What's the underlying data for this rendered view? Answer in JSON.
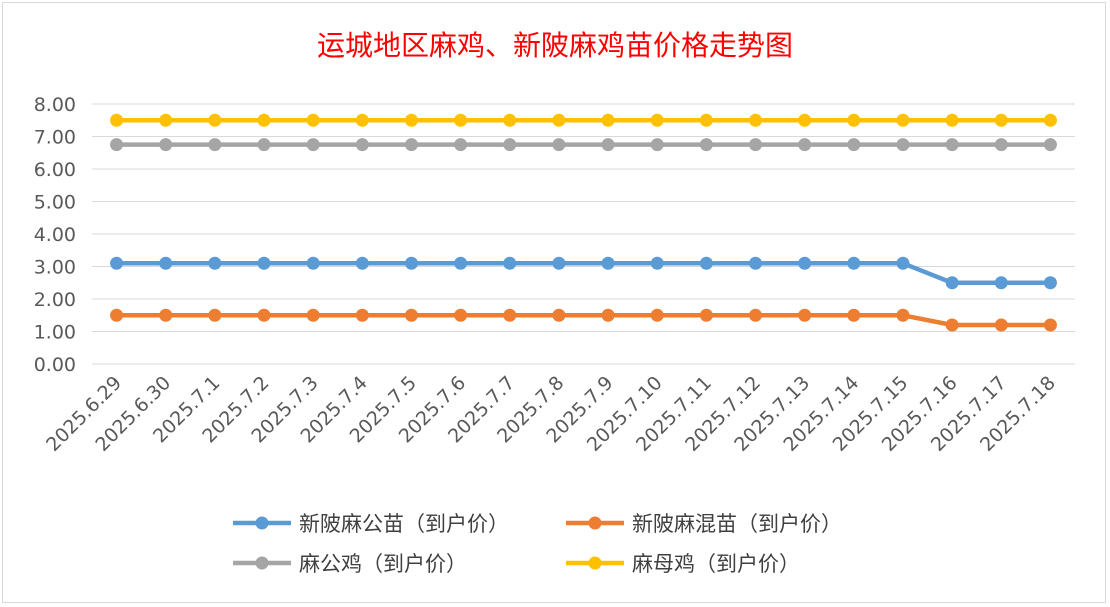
{
  "chart_data": {
    "type": "line",
    "title": "运城地区麻鸡、新陂麻鸡苗价格走势图",
    "xlabel": "",
    "ylabel": "",
    "categories": [
      "2025.6.29",
      "2025.6.30",
      "2025.7.1",
      "2025.7.2",
      "2025.7.3",
      "2025.7.4",
      "2025.7.5",
      "2025.7.6",
      "2025.7.7",
      "2025.7.8",
      "2025.7.9",
      "2025.7.10",
      "2025.7.11",
      "2025.7.12",
      "2025.7.13",
      "2025.7.14",
      "2025.7.15",
      "2025.7.16",
      "2025.7.17",
      "2025.7.18"
    ],
    "ylim": [
      0,
      8
    ],
    "yticks": [
      "0.00",
      "1.00",
      "2.00",
      "3.00",
      "4.00",
      "5.00",
      "6.00",
      "7.00",
      "8.00"
    ],
    "grid": true,
    "legend_position": "bottom",
    "series": [
      {
        "name": "新陂麻公苗（到户价）",
        "color": "#5b9bd5",
        "values": [
          3.1,
          3.1,
          3.1,
          3.1,
          3.1,
          3.1,
          3.1,
          3.1,
          3.1,
          3.1,
          3.1,
          3.1,
          3.1,
          3.1,
          3.1,
          3.1,
          3.1,
          2.5,
          2.5,
          2.5
        ]
      },
      {
        "name": "新陂麻混苗（到户价）",
        "color": "#ed7d31",
        "values": [
          1.5,
          1.5,
          1.5,
          1.5,
          1.5,
          1.5,
          1.5,
          1.5,
          1.5,
          1.5,
          1.5,
          1.5,
          1.5,
          1.5,
          1.5,
          1.5,
          1.5,
          1.2,
          1.2,
          1.2
        ]
      },
      {
        "name": "麻公鸡（到户价）",
        "color": "#a5a5a5",
        "values": [
          6.75,
          6.75,
          6.75,
          6.75,
          6.75,
          6.75,
          6.75,
          6.75,
          6.75,
          6.75,
          6.75,
          6.75,
          6.75,
          6.75,
          6.75,
          6.75,
          6.75,
          6.75,
          6.75,
          6.75
        ]
      },
      {
        "name": "麻母鸡（到户价）",
        "color": "#ffc000",
        "values": [
          7.5,
          7.5,
          7.5,
          7.5,
          7.5,
          7.5,
          7.5,
          7.5,
          7.5,
          7.5,
          7.5,
          7.5,
          7.5,
          7.5,
          7.5,
          7.5,
          7.5,
          7.5,
          7.5,
          7.5
        ]
      }
    ]
  }
}
